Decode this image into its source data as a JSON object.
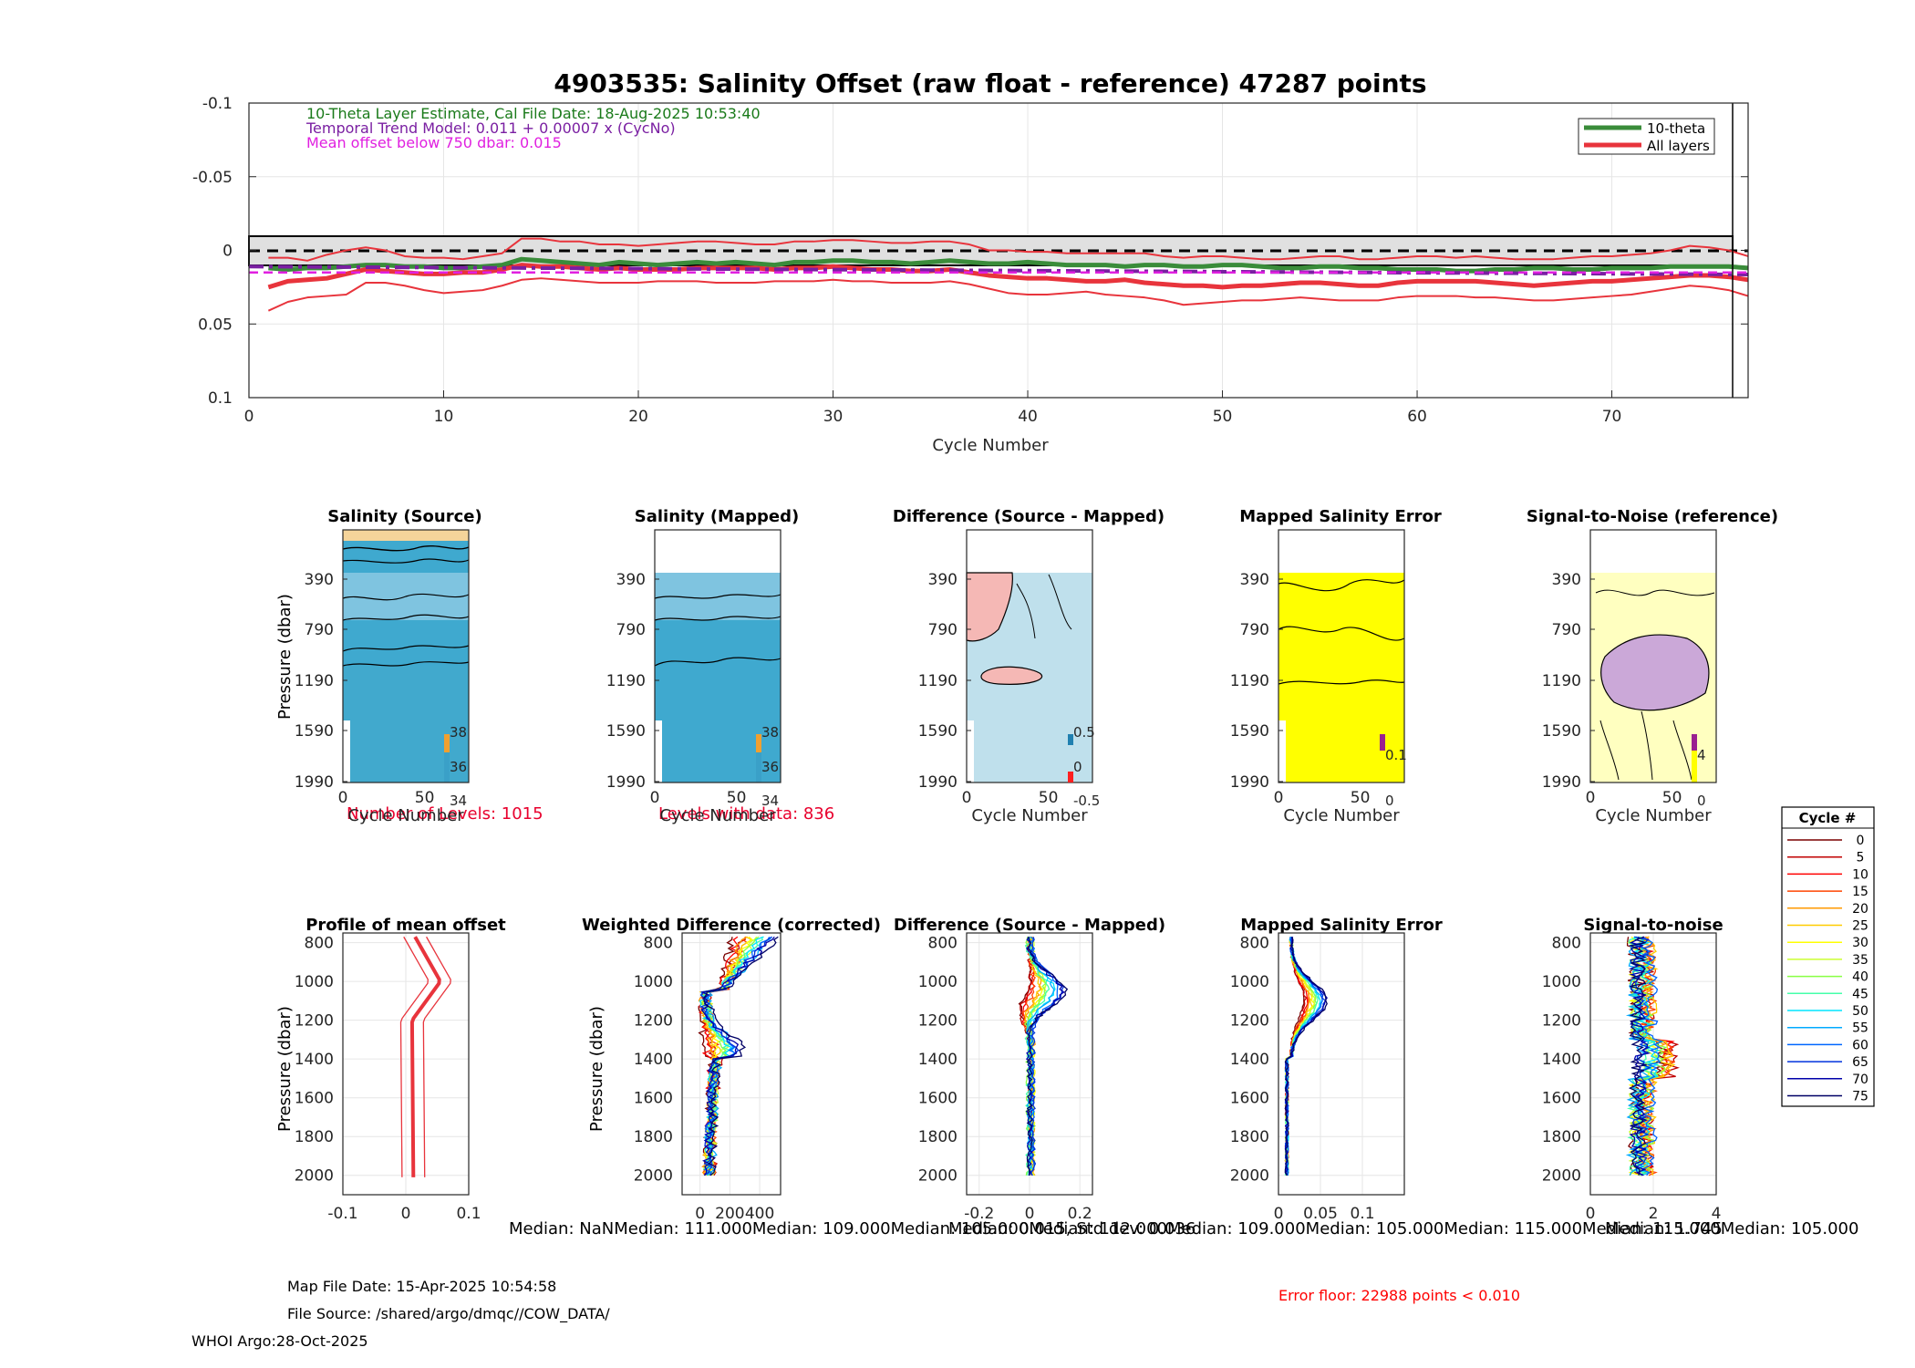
{
  "colors": {
    "ten_theta": "#3a8c3a",
    "all_layers": "#e8343c",
    "trend": "#7a1fa2",
    "mean_offset": "#e020e0",
    "annot_green": "#1a7a1a",
    "annot_red": "#e8002d",
    "source_fill": "#3fa9cf",
    "diff_pink": "#f5b8b5",
    "diff_blue": "#bfe0ec",
    "error_yellow": "#ffff00",
    "snr_yellow": "#ffffc0",
    "snr_purple": "#cba8d8"
  },
  "main": {
    "title": "4903535: Salinity Offset (raw float - reference)   47287 points",
    "annot_theta": "10-Theta Layer Estimate, Cal File Date: 18-Aug-2025 10:53:40",
    "annot_trend": "Temporal Trend Model: 0.011 + 0.00007 x (CycNo)",
    "annot_mean": "Mean offset below 750 dbar: 0.015",
    "legend": [
      "10-theta",
      "All layers"
    ]
  },
  "chart_data": [
    {
      "type": "line",
      "title": "4903535: Salinity Offset (raw float - reference)   47287 points",
      "xlabel": "Cycle Number",
      "ylabel": "",
      "xlim": [
        0,
        77
      ],
      "ylim": [
        -0.1,
        0.1
      ],
      "y_reversed": true,
      "xticks": [
        "0",
        "10",
        "20",
        "30",
        "40",
        "50",
        "60",
        "70"
      ],
      "yticks": [
        "-0.1",
        "-0.05",
        "0",
        "0.05",
        "0.1"
      ],
      "x": [
        1,
        2,
        3,
        4,
        5,
        6,
        7,
        8,
        9,
        10,
        11,
        12,
        13,
        14,
        15,
        16,
        17,
        18,
        19,
        20,
        21,
        22,
        23,
        24,
        25,
        26,
        27,
        28,
        29,
        30,
        31,
        32,
        33,
        34,
        35,
        36,
        37,
        38,
        39,
        40,
        41,
        42,
        43,
        44,
        45,
        46,
        47,
        48,
        49,
        50,
        51,
        52,
        53,
        54,
        55,
        56,
        57,
        58,
        59,
        60,
        61,
        62,
        63,
        64,
        65,
        66,
        67,
        68,
        69,
        70,
        71,
        72,
        73,
        74,
        75,
        76,
        77
      ],
      "series": [
        {
          "name": "10-theta",
          "values": [
            0.012,
            0.013,
            0.012,
            0.012,
            0.011,
            0.01,
            0.01,
            0.011,
            0.011,
            0.012,
            0.012,
            0.011,
            0.01,
            0.006,
            0.007,
            0.008,
            0.009,
            0.01,
            0.008,
            0.009,
            0.01,
            0.009,
            0.008,
            0.009,
            0.008,
            0.009,
            0.01,
            0.008,
            0.008,
            0.007,
            0.007,
            0.008,
            0.008,
            0.009,
            0.008,
            0.007,
            0.008,
            0.009,
            0.009,
            0.008,
            0.009,
            0.01,
            0.01,
            0.01,
            0.011,
            0.01,
            0.01,
            0.011,
            0.011,
            0.01,
            0.01,
            0.011,
            0.012,
            0.012,
            0.011,
            0.011,
            0.012,
            0.012,
            0.013,
            0.013,
            0.013,
            0.014,
            0.014,
            0.013,
            0.013,
            0.012,
            0.012,
            0.013,
            0.013,
            0.012,
            0.012,
            0.012,
            0.011,
            0.011,
            0.011,
            0.011,
            0.012
          ]
        },
        {
          "name": "All layers",
          "values": [
            0.025,
            0.021,
            0.02,
            0.019,
            0.016,
            0.013,
            0.014,
            0.015,
            0.016,
            0.016,
            0.015,
            0.015,
            0.013,
            0.01,
            0.011,
            0.011,
            0.012,
            0.013,
            0.012,
            0.013,
            0.013,
            0.013,
            0.012,
            0.012,
            0.012,
            0.012,
            0.013,
            0.012,
            0.012,
            0.011,
            0.012,
            0.013,
            0.013,
            0.014,
            0.014,
            0.013,
            0.015,
            0.017,
            0.018,
            0.019,
            0.019,
            0.02,
            0.021,
            0.021,
            0.02,
            0.022,
            0.023,
            0.024,
            0.024,
            0.025,
            0.024,
            0.024,
            0.023,
            0.022,
            0.022,
            0.023,
            0.024,
            0.024,
            0.022,
            0.021,
            0.021,
            0.021,
            0.021,
            0.022,
            0.023,
            0.024,
            0.023,
            0.022,
            0.021,
            0.021,
            0.02,
            0.019,
            0.018,
            0.017,
            0.017,
            0.018,
            0.02
          ]
        },
        {
          "name": "Upper bound",
          "values": [
            0.005,
            0.005,
            0.007,
            0.003,
            0.0,
            -0.002,
            0.0,
            0.004,
            0.005,
            0.005,
            0.006,
            0.004,
            0.002,
            -0.008,
            -0.008,
            -0.006,
            -0.006,
            -0.004,
            -0.004,
            -0.003,
            -0.004,
            -0.005,
            -0.006,
            -0.006,
            -0.005,
            -0.004,
            -0.004,
            -0.006,
            -0.006,
            -0.007,
            -0.007,
            -0.006,
            -0.005,
            -0.005,
            -0.006,
            -0.006,
            -0.004,
            0.0,
            0.0,
            0.001,
            0.001,
            0.002,
            0.002,
            0.002,
            0.002,
            0.002,
            0.004,
            0.005,
            0.004,
            0.004,
            0.005,
            0.006,
            0.006,
            0.005,
            0.004,
            0.004,
            0.006,
            0.006,
            0.005,
            0.004,
            0.004,
            0.005,
            0.004,
            0.005,
            0.006,
            0.006,
            0.006,
            0.005,
            0.004,
            0.004,
            0.003,
            0.002,
            0.0,
            -0.003,
            -0.002,
            0.0,
            0.004
          ]
        },
        {
          "name": "Lower bound",
          "values": [
            0.041,
            0.035,
            0.032,
            0.031,
            0.03,
            0.022,
            0.022,
            0.024,
            0.027,
            0.029,
            0.028,
            0.027,
            0.024,
            0.02,
            0.019,
            0.02,
            0.021,
            0.022,
            0.022,
            0.022,
            0.021,
            0.021,
            0.021,
            0.022,
            0.022,
            0.022,
            0.021,
            0.021,
            0.021,
            0.02,
            0.021,
            0.021,
            0.022,
            0.022,
            0.022,
            0.021,
            0.023,
            0.026,
            0.029,
            0.03,
            0.03,
            0.029,
            0.028,
            0.03,
            0.031,
            0.032,
            0.034,
            0.037,
            0.036,
            0.035,
            0.034,
            0.034,
            0.033,
            0.032,
            0.033,
            0.034,
            0.034,
            0.034,
            0.032,
            0.031,
            0.031,
            0.031,
            0.032,
            0.032,
            0.033,
            0.034,
            0.034,
            0.033,
            0.032,
            0.031,
            0.03,
            0.028,
            0.026,
            0.024,
            0.025,
            0.027,
            0.031
          ]
        },
        {
          "name": "Temporal trend",
          "start": 0.011,
          "slope": 7e-05
        },
        {
          "name": "Mean offset below 750 dbar",
          "value": 0.015
        }
      ]
    },
    {
      "type": "heatmap",
      "title": "Salinity (Source)",
      "xlabel": "Cycle Number",
      "ylabel": "Pressure (dbar)",
      "xticks": [
        "0",
        "50"
      ],
      "yticks": [
        "390",
        "790",
        "1190",
        "1590",
        "1990"
      ],
      "colorbar_ticks": [
        "38",
        "36",
        "34"
      ],
      "note": "Number of Levels: 1015"
    },
    {
      "type": "heatmap",
      "title": "Salinity (Mapped)",
      "xlabel": "Cycle Number",
      "ylabel": "",
      "xticks": [
        "0",
        "50"
      ],
      "yticks": [
        "390",
        "790",
        "1190",
        "1590",
        "1990"
      ],
      "colorbar_ticks": [
        "38",
        "36",
        "34"
      ],
      "note": "Levels with data: 836"
    },
    {
      "type": "heatmap",
      "title": "Difference (Source - Mapped)",
      "xlabel": "Cycle Number",
      "ylabel": "",
      "xticks": [
        "0",
        "50"
      ],
      "yticks": [
        "390",
        "790",
        "1190",
        "1590",
        "1990"
      ],
      "colorbar_ticks": [
        "0.5",
        "0",
        "-0.5"
      ]
    },
    {
      "type": "heatmap",
      "title": "Mapped Salinity Error",
      "xlabel": "Cycle Number",
      "ylabel": "",
      "xticks": [
        "0",
        "50"
      ],
      "yticks": [
        "390",
        "790",
        "1190",
        "1590",
        "1990"
      ],
      "colorbar_ticks": [
        "0.1",
        "0"
      ]
    },
    {
      "type": "heatmap",
      "title": "Signal-to-Noise (reference)",
      "xlabel": "Cycle Number",
      "ylabel": "",
      "xticks": [
        "0",
        "50"
      ],
      "yticks": [
        "390",
        "790",
        "1190",
        "1590",
        "1990"
      ],
      "colorbar_ticks": [
        "4",
        "0"
      ]
    },
    {
      "type": "line",
      "title": "Profile of mean offset",
      "ylabel": "Pressure (dbar)",
      "xlim": [
        -0.1,
        0.1
      ],
      "ylim": [
        750,
        2100
      ],
      "xticks": [
        "-0.1",
        "0",
        "0.1"
      ],
      "yticks": [
        "800",
        "1000",
        "1200",
        "1400",
        "1600",
        "1800",
        "2000"
      ]
    },
    {
      "type": "line",
      "title": "Weighted Difference (corrected)",
      "ylabel": "Pressure (dbar)",
      "xlim": [
        -120,
        540
      ],
      "ylim": [
        750,
        2100
      ],
      "xticks": [
        "0",
        "200",
        "400"
      ],
      "yticks": [
        "800",
        "1000",
        "1200",
        "1400",
        "1600",
        "1800",
        "2000"
      ]
    },
    {
      "type": "line",
      "title": "Difference (Source - Mapped)",
      "ylabel": "",
      "xlim": [
        -0.25,
        0.25
      ],
      "ylim": [
        750,
        2100
      ],
      "xticks": [
        "-0.2",
        "0",
        "0.2"
      ],
      "yticks": [
        "800",
        "1000",
        "1200",
        "1400",
        "1600",
        "1800",
        "2000"
      ]
    },
    {
      "type": "line",
      "title": "Mapped Salinity Error",
      "ylabel": "",
      "xlim": [
        0,
        0.15
      ],
      "ylim": [
        750,
        2100
      ],
      "xticks": [
        "0",
        "0.05",
        "0.1"
      ],
      "yticks": [
        "800",
        "1000",
        "1200",
        "1400",
        "1600",
        "1800",
        "2000"
      ]
    },
    {
      "type": "line",
      "title": "Signal-to-noise",
      "ylabel": "",
      "xlim": [
        0,
        4
      ],
      "ylim": [
        750,
        2100
      ],
      "xticks": [
        "0",
        "2",
        "4"
      ],
      "yticks": [
        "800",
        "1000",
        "1200",
        "1400",
        "1600",
        "1800",
        "2000"
      ]
    }
  ],
  "cycle_legend": {
    "title": "Cycle #",
    "entries": [
      "0",
      "5",
      "10",
      "15",
      "20",
      "25",
      "30",
      "35",
      "40",
      "45",
      "50",
      "55",
      "60",
      "65",
      "70",
      "75"
    ],
    "colors": [
      "#7a0000",
      "#c00000",
      "#ff0000",
      "#ff4400",
      "#ff9900",
      "#ffcc00",
      "#ffff00",
      "#ccff33",
      "#88ff44",
      "#44ffaa",
      "#00e5ff",
      "#00aaff",
      "#0066ff",
      "#0033dd",
      "#0000aa",
      "#000066"
    ]
  },
  "medians": "Median:    NaNMedian: 111.000Median: 109.000Median: 105.000Median: 112.000Median: 109.000Median: 105.000Median: 115.000Median: 115.000Median: 105.000",
  "medians_overlay": "Median: 0.015, Std dev: 0.036",
  "medians_overlay2": "Median: 1.745",
  "footer": {
    "map_date": "Map File Date: 15-Apr-2025 10:54:58",
    "file_source": "File Source: /shared/argo/dmqc//COW_DATA/",
    "whoi": "WHOI Argo:28-Oct-2025",
    "error_floor": "Error floor: 22988 points < 0.010"
  }
}
